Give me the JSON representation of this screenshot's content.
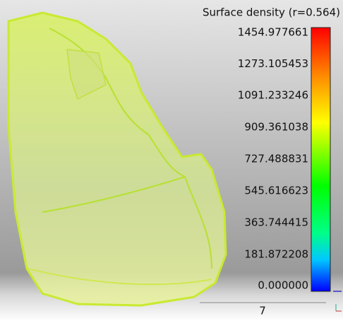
{
  "scale": {
    "title": "Surface density (r=0.564)",
    "labels": [
      "1454.977661",
      "1273.105453",
      "1091.233246",
      "909.361038",
      "727.488831",
      "545.616623",
      "363.744415",
      "181.872208",
      "0.000000"
    ]
  },
  "scale_bar": {
    "label": "7"
  }
}
